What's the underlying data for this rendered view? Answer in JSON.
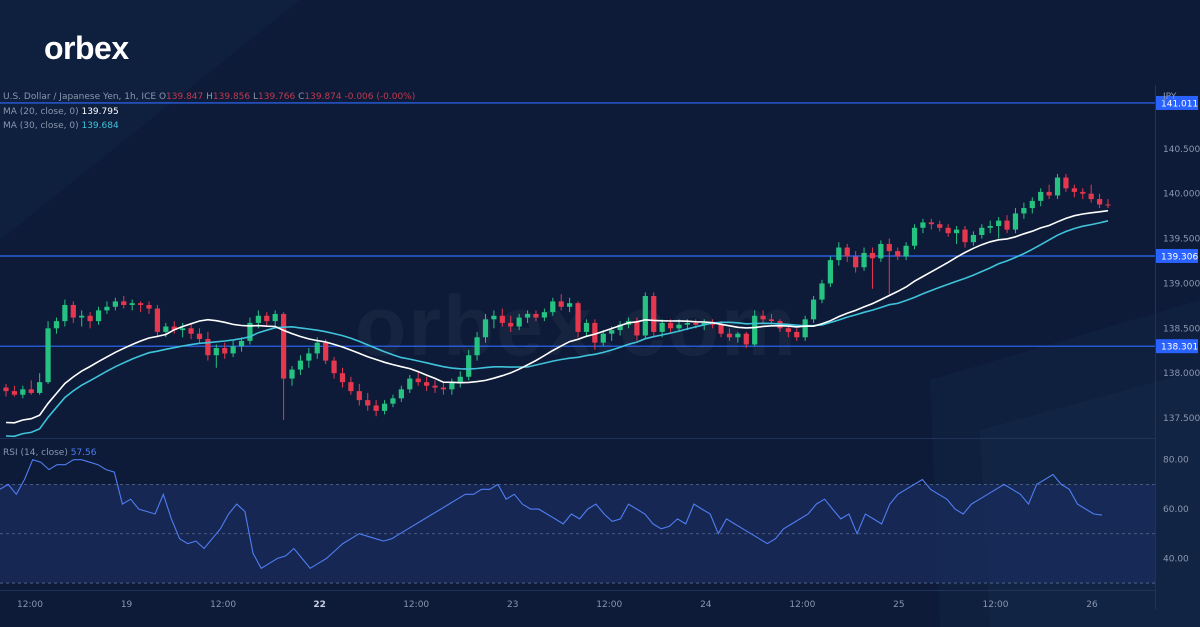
{
  "logo_text": "orbex",
  "watermark_text": "orbex.com",
  "instrument": {
    "name": "U.S. Dollar / Japanese Yen, 1h, ICE",
    "o_label": "O",
    "o": "139.847",
    "h_label": "H",
    "h": "139.856",
    "l_label": "L",
    "l": "139.766",
    "c_label": "C",
    "c": "139.874",
    "change": "-0.006 (-0.00%)"
  },
  "ma20": {
    "label": "MA (20, close, 0)",
    "value": "139.795",
    "color": "#ffffff"
  },
  "ma30": {
    "label": "MA (30, close, 0)",
    "value": "139.684",
    "color": "#3fc3da"
  },
  "rsi": {
    "label": "RSI (14, close)",
    "value": "57.56",
    "color": "#4f7df0"
  },
  "currency_label": "JPY",
  "chart_data": [
    {
      "type": "candlestick",
      "panel": "price",
      "y_range": [
        137.3,
        141.2
      ],
      "y_ticks": [
        "140.500",
        "140.000",
        "139.500",
        "139.000",
        "138.500",
        "138.000",
        "137.500"
      ],
      "x_ticks": [
        "12:00",
        "19",
        "12:00",
        "22",
        "12:00",
        "23",
        "12:00",
        "24",
        "12:00",
        "25",
        "12:00",
        "26"
      ],
      "horizontal_levels": [
        {
          "label": "141.011",
          "value": 141.011
        },
        {
          "label": "139.306",
          "value": 139.306
        },
        {
          "label": "138.301",
          "value": 138.301
        }
      ],
      "candles": [
        [
          137.84,
          137.88,
          137.74,
          137.8
        ],
        [
          137.8,
          137.86,
          137.74,
          137.76
        ],
        [
          137.76,
          137.86,
          137.72,
          137.82
        ],
        [
          137.82,
          137.92,
          137.76,
          137.78
        ],
        [
          137.78,
          138.0,
          137.76,
          137.9
        ],
        [
          137.9,
          138.58,
          137.88,
          138.5
        ],
        [
          138.5,
          138.62,
          138.44,
          138.58
        ],
        [
          138.58,
          138.82,
          138.52,
          138.76
        ],
        [
          138.76,
          138.8,
          138.56,
          138.62
        ],
        [
          138.62,
          138.7,
          138.52,
          138.64
        ],
        [
          138.64,
          138.68,
          138.5,
          138.58
        ],
        [
          138.58,
          138.74,
          138.54,
          138.7
        ],
        [
          138.7,
          138.8,
          138.66,
          138.74
        ],
        [
          138.74,
          138.84,
          138.7,
          138.8
        ],
        [
          138.8,
          138.86,
          138.72,
          138.76
        ],
        [
          138.76,
          138.82,
          138.7,
          138.78
        ],
        [
          138.78,
          138.8,
          138.68,
          138.76
        ],
        [
          138.76,
          138.8,
          138.66,
          138.72
        ],
        [
          138.72,
          138.76,
          138.4,
          138.46
        ],
        [
          138.46,
          138.56,
          138.4,
          138.52
        ],
        [
          138.52,
          138.58,
          138.44,
          138.48
        ],
        [
          138.48,
          138.56,
          138.4,
          138.5
        ],
        [
          138.5,
          138.56,
          138.38,
          138.44
        ],
        [
          138.44,
          138.5,
          138.34,
          138.38
        ],
        [
          138.38,
          138.46,
          138.14,
          138.2
        ],
        [
          138.2,
          138.32,
          138.06,
          138.28
        ],
        [
          138.28,
          138.34,
          138.16,
          138.22
        ],
        [
          138.22,
          138.36,
          138.18,
          138.3
        ],
        [
          138.3,
          138.4,
          138.24,
          138.36
        ],
        [
          138.36,
          138.62,
          138.32,
          138.56
        ],
        [
          138.56,
          138.7,
          138.5,
          138.64
        ],
        [
          138.64,
          138.68,
          138.52,
          138.58
        ],
        [
          138.58,
          138.7,
          138.5,
          138.66
        ],
        [
          138.66,
          138.68,
          137.48,
          137.94
        ],
        [
          137.94,
          138.08,
          137.86,
          138.04
        ],
        [
          138.04,
          138.2,
          137.98,
          138.14
        ],
        [
          138.14,
          138.28,
          138.06,
          138.22
        ],
        [
          138.22,
          138.4,
          138.16,
          138.34
        ],
        [
          138.34,
          138.38,
          138.1,
          138.14
        ],
        [
          138.14,
          138.18,
          137.94,
          138.0
        ],
        [
          138.0,
          138.06,
          137.84,
          137.9
        ],
        [
          137.9,
          137.96,
          137.76,
          137.8
        ],
        [
          137.8,
          137.88,
          137.64,
          137.7
        ],
        [
          137.7,
          137.78,
          137.58,
          137.64
        ],
        [
          137.64,
          137.7,
          137.52,
          137.58
        ],
        [
          137.58,
          137.7,
          137.54,
          137.66
        ],
        [
          137.66,
          137.76,
          137.62,
          137.72
        ],
        [
          137.72,
          137.86,
          137.68,
          137.82
        ],
        [
          137.82,
          137.98,
          137.78,
          137.94
        ],
        [
          137.94,
          138.02,
          137.86,
          137.9
        ],
        [
          137.9,
          137.96,
          137.8,
          137.86
        ],
        [
          137.86,
          137.92,
          137.78,
          137.84
        ],
        [
          137.84,
          137.9,
          137.76,
          137.82
        ],
        [
          137.82,
          137.94,
          137.76,
          137.9
        ],
        [
          137.9,
          138.02,
          137.84,
          137.96
        ],
        [
          137.96,
          138.26,
          137.92,
          138.2
        ],
        [
          138.2,
          138.46,
          138.14,
          138.4
        ],
        [
          138.4,
          138.66,
          138.34,
          138.6
        ],
        [
          138.6,
          138.7,
          138.5,
          138.64
        ],
        [
          138.64,
          138.72,
          138.52,
          138.56
        ],
        [
          138.56,
          138.64,
          138.46,
          138.52
        ],
        [
          138.52,
          138.66,
          138.48,
          138.62
        ],
        [
          138.62,
          138.7,
          138.56,
          138.66
        ],
        [
          138.66,
          138.7,
          138.58,
          138.62
        ],
        [
          138.62,
          138.72,
          138.58,
          138.68
        ],
        [
          138.68,
          138.84,
          138.64,
          138.8
        ],
        [
          138.8,
          138.88,
          138.7,
          138.74
        ],
        [
          138.74,
          138.84,
          138.68,
          138.78
        ],
        [
          138.78,
          138.8,
          138.4,
          138.46
        ],
        [
          138.46,
          138.6,
          138.4,
          138.56
        ],
        [
          138.56,
          138.6,
          138.26,
          138.34
        ],
        [
          138.34,
          138.48,
          138.3,
          138.44
        ],
        [
          138.44,
          138.52,
          138.36,
          138.48
        ],
        [
          138.48,
          138.58,
          138.42,
          138.54
        ],
        [
          138.54,
          138.62,
          138.5,
          138.58
        ],
        [
          138.58,
          138.62,
          138.36,
          138.42
        ],
        [
          138.42,
          138.9,
          138.38,
          138.86
        ],
        [
          138.86,
          138.9,
          138.4,
          138.46
        ],
        [
          138.46,
          138.6,
          138.4,
          138.56
        ],
        [
          138.56,
          138.6,
          138.44,
          138.5
        ],
        [
          138.5,
          138.6,
          138.46,
          138.54
        ],
        [
          138.54,
          138.6,
          138.48,
          138.56
        ],
        [
          138.56,
          138.6,
          138.5,
          138.54
        ],
        [
          138.54,
          138.6,
          138.48,
          138.56
        ],
        [
          138.56,
          138.6,
          138.5,
          138.54
        ],
        [
          138.54,
          138.58,
          138.4,
          138.44
        ],
        [
          138.44,
          138.5,
          138.36,
          138.4
        ],
        [
          138.4,
          138.46,
          138.34,
          138.44
        ],
        [
          138.44,
          138.46,
          138.28,
          138.32
        ],
        [
          138.32,
          138.7,
          138.3,
          138.64
        ],
        [
          138.64,
          138.7,
          138.56,
          138.6
        ],
        [
          138.6,
          138.66,
          138.54,
          138.58
        ],
        [
          138.58,
          138.6,
          138.46,
          138.5
        ],
        [
          138.5,
          138.54,
          138.4,
          138.46
        ],
        [
          138.46,
          138.5,
          138.36,
          138.4
        ],
        [
          138.4,
          138.64,
          138.36,
          138.6
        ],
        [
          138.6,
          138.86,
          138.56,
          138.82
        ],
        [
          138.82,
          139.04,
          138.78,
          139.0
        ],
        [
          139.0,
          139.3,
          138.96,
          139.26
        ],
        [
          139.26,
          139.46,
          139.2,
          139.4
        ],
        [
          139.4,
          139.44,
          139.24,
          139.3
        ],
        [
          139.3,
          139.36,
          139.12,
          139.18
        ],
        [
          139.18,
          139.4,
          139.14,
          139.34
        ],
        [
          139.34,
          139.4,
          138.94,
          139.28
        ],
        [
          139.28,
          139.48,
          139.24,
          139.44
        ],
        [
          139.44,
          139.5,
          138.88,
          139.36
        ],
        [
          139.36,
          139.4,
          139.26,
          139.3
        ],
        [
          139.3,
          139.46,
          139.26,
          139.42
        ],
        [
          139.42,
          139.66,
          139.38,
          139.62
        ],
        [
          139.62,
          139.72,
          139.56,
          139.68
        ],
        [
          139.68,
          139.72,
          139.6,
          139.66
        ],
        [
          139.66,
          139.7,
          139.58,
          139.62
        ],
        [
          139.62,
          139.66,
          139.52,
          139.56
        ],
        [
          139.56,
          139.64,
          139.44,
          139.6
        ],
        [
          139.6,
          139.64,
          139.4,
          139.46
        ],
        [
          139.46,
          139.58,
          139.42,
          139.54
        ],
        [
          139.54,
          139.66,
          139.5,
          139.62
        ],
        [
          139.62,
          139.7,
          139.56,
          139.64
        ],
        [
          139.64,
          139.74,
          139.5,
          139.7
        ],
        [
          139.7,
          139.76,
          139.56,
          139.6
        ],
        [
          139.6,
          139.84,
          139.56,
          139.78
        ],
        [
          139.78,
          139.9,
          139.72,
          139.84
        ],
        [
          139.84,
          139.96,
          139.78,
          139.92
        ],
        [
          139.92,
          140.06,
          139.86,
          140.02
        ],
        [
          140.02,
          140.1,
          139.94,
          139.98
        ],
        [
          139.98,
          140.22,
          139.94,
          140.18
        ],
        [
          140.18,
          140.22,
          140.02,
          140.06
        ],
        [
          140.06,
          140.1,
          139.96,
          140.02
        ],
        [
          140.02,
          140.06,
          139.94,
          140.0
        ],
        [
          140.0,
          140.1,
          139.9,
          139.94
        ],
        [
          139.94,
          140.0,
          139.84,
          139.88
        ],
        [
          139.88,
          139.94,
          139.84,
          139.87
        ]
      ],
      "series": [
        {
          "name": "MA (20, close, 0)",
          "last": 139.795
        },
        {
          "name": "MA (30, close, 0)",
          "last": 139.684
        }
      ]
    },
    {
      "type": "line",
      "panel": "rsi",
      "y_range": [
        28,
        88
      ],
      "y_ticks": [
        "80.00",
        "60.00",
        "40.00"
      ],
      "levels": [
        70,
        50,
        30
      ],
      "series": [
        {
          "name": "RSI (14, close)",
          "values": [
            68,
            70,
            66,
            72,
            80,
            79,
            76,
            78,
            78,
            80,
            80,
            79,
            78,
            76,
            75,
            62,
            64,
            60,
            59,
            58,
            66,
            56,
            48,
            46,
            47,
            44,
            48,
            52,
            58,
            62,
            59,
            42,
            36,
            38,
            40,
            41,
            44,
            40,
            36,
            38,
            40,
            43,
            46,
            48,
            50,
            49,
            48,
            47,
            48,
            50,
            52,
            54,
            56,
            58,
            60,
            62,
            64,
            66,
            66,
            68,
            68,
            70,
            64,
            66,
            62,
            60,
            60,
            58,
            56,
            54,
            58,
            56,
            60,
            62,
            58,
            55,
            56,
            62,
            60,
            58,
            54,
            52,
            53,
            56,
            54,
            62,
            60,
            58,
            50,
            56,
            54,
            52,
            50,
            48,
            46,
            48,
            52,
            54,
            56,
            58,
            62,
            64,
            60,
            56,
            58,
            50,
            58,
            56,
            54,
            62,
            66,
            68,
            70,
            72,
            68,
            66,
            64,
            60,
            58,
            62,
            64,
            66,
            68,
            70,
            68,
            66,
            62,
            70,
            72,
            74,
            70,
            68,
            62,
            60,
            58,
            57.56
          ]
        }
      ]
    }
  ]
}
